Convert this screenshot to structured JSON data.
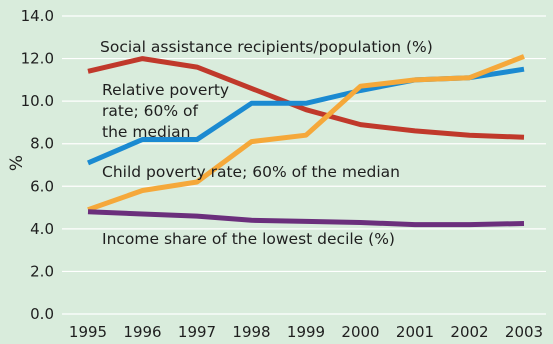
{
  "chart_data": {
    "type": "line",
    "x": [
      1995,
      1996,
      1997,
      1998,
      1999,
      2000,
      2001,
      2002,
      2003
    ],
    "ylabel": "%",
    "ylim": [
      0,
      14
    ],
    "yticks": [
      "0.0",
      "2.0",
      "4.0",
      "6.0",
      "8.0",
      "10.0",
      "12.0",
      "14.0"
    ],
    "xticks": [
      "1995",
      "1996",
      "1997",
      "1998",
      "1999",
      "2000",
      "2001",
      "2002",
      "2003"
    ],
    "grid": true,
    "background": "#d9ecdc",
    "grid_color": "#ffffff",
    "series": [
      {
        "name": "Social assistance recipients/population (%)",
        "color": "#c0392b",
        "values": [
          11.4,
          12.0,
          11.6,
          10.6,
          9.6,
          8.9,
          8.6,
          8.4,
          8.3
        ]
      },
      {
        "name": "Relative poverty rate; 60% of the median",
        "color": "#1b8ad1",
        "values": [
          7.1,
          8.2,
          8.2,
          9.9,
          9.9,
          10.5,
          11.0,
          11.1,
          11.5
        ]
      },
      {
        "name": "Child poverty rate; 60% of the median",
        "color": "#f5a83a",
        "values": [
          4.9,
          5.8,
          6.2,
          8.1,
          8.4,
          10.7,
          11.0,
          11.1,
          12.1
        ]
      },
      {
        "name": "Income share of the lowest decile (%)",
        "color": "#6b2f7c",
        "values": [
          4.8,
          4.7,
          4.6,
          4.4,
          4.35,
          4.3,
          4.2,
          4.2,
          4.25
        ]
      }
    ]
  },
  "annotations": {
    "social": "Social assistance recipients/population (%)",
    "relative_1": "Relative poverty",
    "relative_2": "rate; 60% of",
    "relative_3": "the median",
    "child": "Child poverty rate; 60% of the median",
    "income": "Income share of the lowest decile (%)"
  }
}
